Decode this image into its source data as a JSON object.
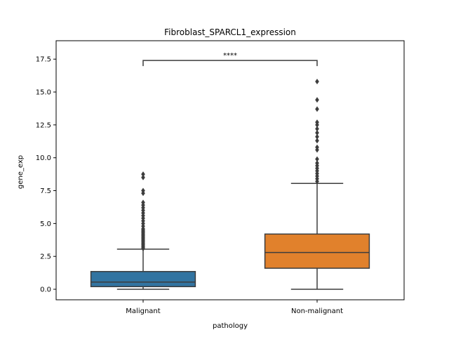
{
  "chart_data": {
    "type": "box",
    "title": "Fibroblast_SPARCL1_expression",
    "xlabel": "pathology",
    "ylabel": "gene_exp",
    "ylim": [
      -0.8,
      18.9
    ],
    "yticks": [
      0.0,
      2.5,
      5.0,
      7.5,
      10.0,
      12.5,
      15.0,
      17.5
    ],
    "ytick_labels": [
      "0.0",
      "2.5",
      "5.0",
      "7.5",
      "10.0",
      "12.5",
      "15.0",
      "17.5"
    ],
    "categories": [
      "Malignant",
      "Non-malignant"
    ],
    "colors": [
      "#3274a1",
      "#e1812c"
    ],
    "grid": false,
    "boxes": [
      {
        "category": "Malignant",
        "whisker_low": 0.0,
        "q1": 0.2,
        "median": 0.55,
        "q3": 1.35,
        "whisker_high": 3.05,
        "outliers": [
          3.1,
          3.2,
          3.3,
          3.4,
          3.5,
          3.6,
          3.7,
          3.8,
          3.9,
          4.0,
          4.1,
          4.2,
          4.3,
          4.4,
          4.5,
          4.6,
          4.8,
          5.0,
          5.2,
          5.4,
          5.6,
          5.8,
          6.0,
          6.2,
          6.4,
          6.6,
          7.3,
          7.5,
          8.5,
          8.75
        ]
      },
      {
        "category": "Non-malignant",
        "whisker_low": 0.0,
        "q1": 1.6,
        "median": 2.8,
        "q3": 4.2,
        "whisker_high": 8.05,
        "outliers": [
          8.2,
          8.4,
          8.6,
          8.8,
          9.0,
          9.2,
          9.4,
          9.6,
          9.9,
          10.6,
          10.8,
          11.3,
          11.6,
          11.9,
          12.2,
          12.5,
          12.7,
          13.7,
          14.4,
          15.8
        ]
      }
    ],
    "annotation": {
      "text": "****",
      "between": [
        "Malignant",
        "Non-malignant"
      ],
      "y": 17.4
    }
  }
}
